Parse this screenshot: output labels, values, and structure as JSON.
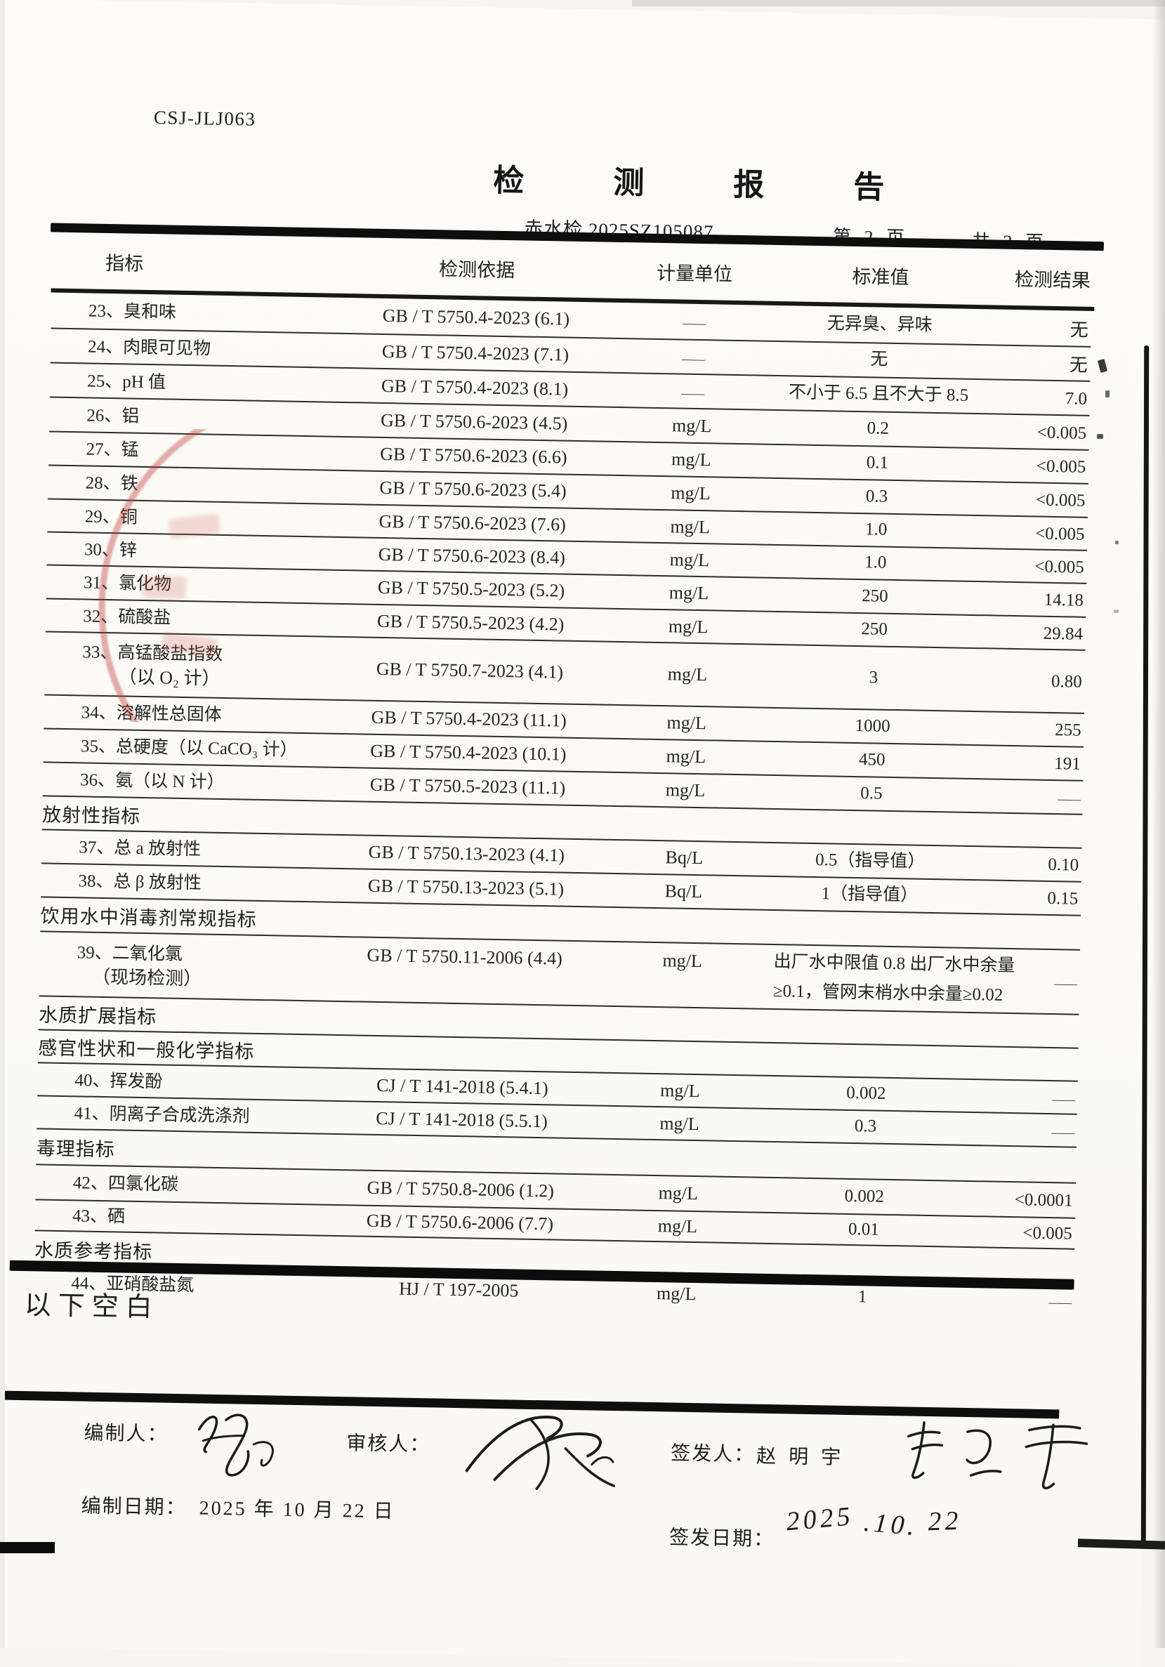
{
  "page": {
    "form_code": "CSJ-JLJ063",
    "title": "检 测 报 告",
    "report_no": "赤水检 2025SZ105087",
    "page_label": "第 2 页",
    "pages_total_label": "共 2 页",
    "below_blank": "以下空白"
  },
  "table": {
    "headers": {
      "indicator": "指标",
      "basis": "检测依据",
      "unit": "计量单位",
      "standard": "标准值",
      "result": "检测结果"
    },
    "rows": [
      {
        "t": "item",
        "label": "23、臭和味",
        "basis": "GB / T 5750.4-2023 (6.1)",
        "unit": "——",
        "std": "无异臭、异味",
        "result": "无"
      },
      {
        "t": "item",
        "label": "24、肉眼可见物",
        "basis": "GB / T 5750.4-2023 (7.1)",
        "unit": "——",
        "std": "无",
        "result": "无"
      },
      {
        "t": "item",
        "label": "25、pH 值",
        "basis": "GB / T 5750.4-2023 (8.1)",
        "unit": "——",
        "std": "不小于 6.5 且不大于 8.5",
        "result": "7.0"
      },
      {
        "t": "item",
        "label": "26、铝",
        "basis": "GB / T 5750.6-2023 (4.5)",
        "unit": "mg/L",
        "std": "0.2",
        "result": "<0.005"
      },
      {
        "t": "item",
        "label": "27、锰",
        "basis": "GB / T 5750.6-2023 (6.6)",
        "unit": "mg/L",
        "std": "0.1",
        "result": "<0.005"
      },
      {
        "t": "item",
        "label": "28、铁",
        "basis": "GB / T 5750.6-2023 (5.4)",
        "unit": "mg/L",
        "std": "0.3",
        "result": "<0.005"
      },
      {
        "t": "item",
        "label": "29、铜",
        "basis": "GB / T 5750.6-2023 (7.6)",
        "unit": "mg/L",
        "std": "1.0",
        "result": "<0.005"
      },
      {
        "t": "item",
        "label": "30、锌",
        "basis": "GB / T 5750.6-2023 (8.4)",
        "unit": "mg/L",
        "std": "1.0",
        "result": "<0.005"
      },
      {
        "t": "item",
        "label": "31、氯化物",
        "basis": "GB / T 5750.5-2023 (5.2)",
        "unit": "mg/L",
        "std": "250",
        "result": "14.18"
      },
      {
        "t": "item",
        "label": "32、硫酸盐",
        "basis": "GB / T 5750.5-2023 (4.2)",
        "unit": "mg/L",
        "std": "250",
        "result": "29.84"
      },
      {
        "t": "item",
        "label": "33、高锰酸盐指数",
        "label2": "（以 O₂ 计）",
        "basis": "GB / T 5750.7-2023 (4.1)",
        "unit": "mg/L",
        "std": "3",
        "result": "0.80"
      },
      {
        "t": "item",
        "label": "34、溶解性总固体",
        "basis": "GB / T 5750.4-2023 (11.1)",
        "unit": "mg/L",
        "std": "1000",
        "result": "255"
      },
      {
        "t": "item",
        "label": "35、总硬度（以 CaCO₃ 计）",
        "basis": "GB / T 5750.4-2023 (10.1)",
        "unit": "mg/L",
        "std": "450",
        "result": "191"
      },
      {
        "t": "item",
        "label": "36、氨（以 N 计）",
        "basis": "GB / T 5750.5-2023 (11.1)",
        "unit": "mg/L",
        "std": "0.5",
        "result": "——"
      },
      {
        "t": "section",
        "label": "放射性指标"
      },
      {
        "t": "item",
        "label": "37、总 a 放射性",
        "basis": "GB / T 5750.13-2023 (4.1)",
        "unit": "Bq/L",
        "std": "0.5（指导值）",
        "result": "0.10"
      },
      {
        "t": "item",
        "label": "38、总 β 放射性",
        "basis": "GB / T 5750.13-2023 (5.1)",
        "unit": "Bq/L",
        "std": "1（指导值）",
        "result": "0.15"
      },
      {
        "t": "section",
        "label": "饮用水中消毒剂常规指标"
      },
      {
        "t": "item",
        "label": "39、二氧化氯",
        "label2": "（现场检测）",
        "basis": "GB / T 5750.11-2006 (4.4)",
        "unit": "mg/L",
        "std": "出厂水中限值 0.8 出厂水中余量",
        "std2": "≥0.1，管网末梢水中余量≥0.02",
        "result": "——"
      },
      {
        "t": "section",
        "label": "水质扩展指标"
      },
      {
        "t": "section",
        "label": "感官性状和一般化学指标"
      },
      {
        "t": "item",
        "label": "40、挥发酚",
        "basis": "CJ / T 141-2018 (5.4.1)",
        "unit": "mg/L",
        "std": "0.002",
        "result": "——"
      },
      {
        "t": "item",
        "label": "41、阴离子合成洗涤剂",
        "basis": "CJ / T 141-2018 (5.5.1)",
        "unit": "mg/L",
        "std": "0.3",
        "result": "——"
      },
      {
        "t": "section",
        "label": "毒理指标"
      },
      {
        "t": "item",
        "label": "42、四氯化碳",
        "basis": "GB / T 5750.8-2006 (1.2)",
        "unit": "mg/L",
        "std": "0.002",
        "result": "<0.0001"
      },
      {
        "t": "item",
        "label": "43、硒",
        "basis": "GB / T 5750.6-2006 (7.7)",
        "unit": "mg/L",
        "std": "0.01",
        "result": "<0.005"
      },
      {
        "t": "section",
        "label": "水质参考指标"
      },
      {
        "t": "item",
        "label": "44、亚硝酸盐氮",
        "basis": "HJ / T 197-2005",
        "unit": "mg/L",
        "std": "1",
        "result": "——"
      }
    ]
  },
  "footer": {
    "preparer_label": "编制人：",
    "reviewer_label": "审核人：",
    "issuer_label": "签发人：",
    "issuer_name": "赵明宇",
    "prepare_date_label": "编制日期：",
    "prepare_date": "2025 年 10 月 22 日",
    "issue_date_label": "签发日期：",
    "issue_date_handwritten_1": "2025",
    "issue_date_handwritten_2": ".10.",
    "issue_date_handwritten_3": "22"
  }
}
